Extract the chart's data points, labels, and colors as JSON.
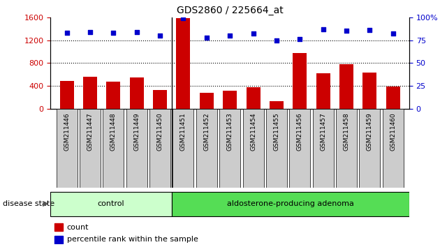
{
  "title": "GDS2860 / 225664_at",
  "samples": [
    "GSM211446",
    "GSM211447",
    "GSM211448",
    "GSM211449",
    "GSM211450",
    "GSM211451",
    "GSM211452",
    "GSM211453",
    "GSM211454",
    "GSM211455",
    "GSM211456",
    "GSM211457",
    "GSM211458",
    "GSM211459",
    "GSM211460"
  ],
  "counts": [
    490,
    560,
    470,
    550,
    330,
    1580,
    280,
    320,
    370,
    130,
    970,
    620,
    780,
    630,
    390
  ],
  "percentiles": [
    83,
    84,
    83,
    84,
    80,
    99,
    78,
    80,
    82,
    75,
    76,
    87,
    85,
    86,
    82
  ],
  "control_count": 5,
  "group1_label": "control",
  "group2_label": "aldosterone-producing adenoma",
  "group1_color": "#ccffcc",
  "group2_color": "#55dd55",
  "bar_color": "#cc0000",
  "dot_color": "#0000cc",
  "ylim_left": [
    0,
    1600
  ],
  "ylim_right": [
    0,
    100
  ],
  "yticks_left": [
    0,
    400,
    800,
    1200,
    1600
  ],
  "yticks_right": [
    0,
    25,
    50,
    75,
    100
  ],
  "disease_state_label": "disease state",
  "legend_count": "count",
  "legend_percentile": "percentile rank within the sample",
  "tick_bg_color": "#cccccc",
  "dotted_grid_levels": [
    400,
    800,
    1200
  ]
}
